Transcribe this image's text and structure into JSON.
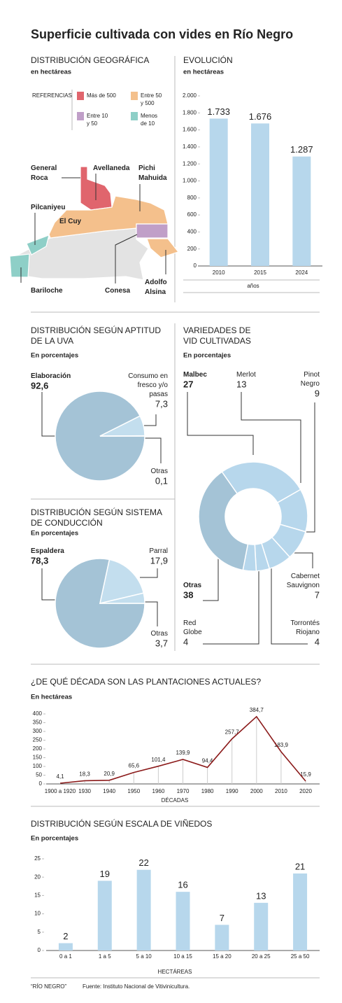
{
  "title": "Superficie cultivada con vides en Río Negro",
  "map": {
    "title": "DISTRIBUCIÓN GEOGRÁFICA",
    "subtitle": "en hectáreas",
    "legend_title": "REFERENCIAS",
    "legend": [
      {
        "label": "Más de 500",
        "color": "#e0656d"
      },
      {
        "label": "Entre 50 y 500",
        "color": "#f4c08c"
      },
      {
        "label": "Entre 10 y 50",
        "color": "#c09fc8"
      },
      {
        "label": "Menos de 10",
        "color": "#8ecfc7"
      }
    ],
    "places": [
      "General Roca",
      "Avellaneda",
      "Pichi Mahuida",
      "Pilcaniyeu",
      "El Cuy",
      "Bariloche",
      "Conesa",
      "Adolfo Alsina"
    ]
  },
  "chart_data": [
    {
      "type": "bar",
      "title": "EVOLUCIÓN",
      "subtitle": "en hectáreas",
      "categories": [
        "2010",
        "2015",
        "2024"
      ],
      "values": [
        1733,
        1676,
        1287
      ],
      "value_labels": [
        "1.733",
        "1.676",
        "1.287"
      ],
      "color": "#b7d7ec",
      "ylim": [
        0,
        2000
      ],
      "yticks": [
        0,
        200,
        400,
        600,
        800,
        {
          "value": 1000,
          "label": "1.000"
        },
        {
          "value": 1200,
          "label": "1.200"
        },
        {
          "value": 1400,
          "label": "1.400"
        },
        {
          "value": 1600,
          "label": "1.600"
        },
        {
          "value": 1800,
          "label": "1.800"
        },
        {
          "value": 2000,
          "label": "2.000"
        }
      ],
      "xlabel": "años"
    },
    {
      "type": "pie",
      "title": "DISTRIBUCIÓN SEGÚN APTITUD DE LA UVA",
      "subtitle": "En porcentajes",
      "categories": [
        "Elaboración",
        "Consumo en fresco y/o pasas",
        "Otras"
      ],
      "values": [
        92.6,
        7.3,
        0.1
      ],
      "value_labels": [
        "92,6",
        "7,3",
        "0,1"
      ],
      "colors": [
        "#a4c3d6",
        "#c3deee",
        "#c3deee"
      ]
    },
    {
      "type": "pie",
      "title": "DISTRIBUCIÓN SEGÚN SISTEMA DE CONDUCCIÓN",
      "subtitle": "En porcentajes",
      "categories": [
        "Espaldera",
        "Parral",
        "Otras"
      ],
      "values": [
        78.3,
        17.9,
        3.7
      ],
      "value_labels": [
        "78,3",
        "17,9",
        "3,7"
      ],
      "colors": [
        "#a4c3d6",
        "#c3deee",
        "#c3deee"
      ]
    },
    {
      "type": "donut",
      "title": "VARIEDADES DE VID CULTIVADAS",
      "subtitle": "En porcentajes",
      "categories": [
        "Malbec",
        "Merlot",
        "Pinot Negro",
        "Cabernet Sauvignon",
        "Torrontés Riojano",
        "Red Globe",
        "Otras"
      ],
      "values": [
        27,
        13,
        9,
        7,
        4,
        4,
        38
      ],
      "colors": [
        "#b7d7ec",
        "#b7d7ec",
        "#b7d7ec",
        "#b7d7ec",
        "#b7d7ec",
        "#b7d7ec",
        "#a4c3d6"
      ]
    },
    {
      "type": "line",
      "title": "¿DE QUÉ DÉCADA SON LAS PLANTACIONES ACTUALES?",
      "subtitle": "En hectáreas",
      "categories": [
        "1900 a 1920",
        "1930",
        "1940",
        "1950",
        "1960",
        "1970",
        "1980",
        "1990",
        "2000",
        "2010",
        "2020"
      ],
      "values": [
        4.1,
        18.3,
        20.9,
        65.6,
        101.4,
        139.9,
        94.4,
        257.7,
        384.7,
        183.9,
        15.9
      ],
      "value_labels": [
        "4,1",
        "18,3",
        "20,9",
        "65,6",
        "101,4",
        "139,9",
        "94,4",
        "257,7",
        "384,7",
        "183,9",
        "15,9"
      ],
      "color": "#8b1a1a",
      "ylim": [
        0,
        400
      ],
      "yticks": [
        0,
        50,
        100,
        150,
        200,
        250,
        300,
        350,
        400
      ],
      "xlabel": "DÉCADAS"
    },
    {
      "type": "bar",
      "title": "DISTRIBUCIÓN SEGÚN ESCALA DE VIÑEDOS",
      "subtitle": "En porcentajes",
      "categories": [
        "0 a 1",
        "1 a 5",
        "5 a 10",
        "10 a 15",
        "15 a 20",
        "20 a 25",
        "25 a 50"
      ],
      "values": [
        2,
        19,
        22,
        16,
        7,
        13,
        21
      ],
      "color": "#b7d7ec",
      "ylim": [
        0,
        25
      ],
      "yticks": [
        0,
        5,
        10,
        15,
        20,
        25
      ],
      "xlabel": "HECTÁREAS"
    }
  ],
  "footer": {
    "note": "“RÍO NEGRO”",
    "source": "Fuente: Instituto Nacional de Vitivinicultura."
  }
}
